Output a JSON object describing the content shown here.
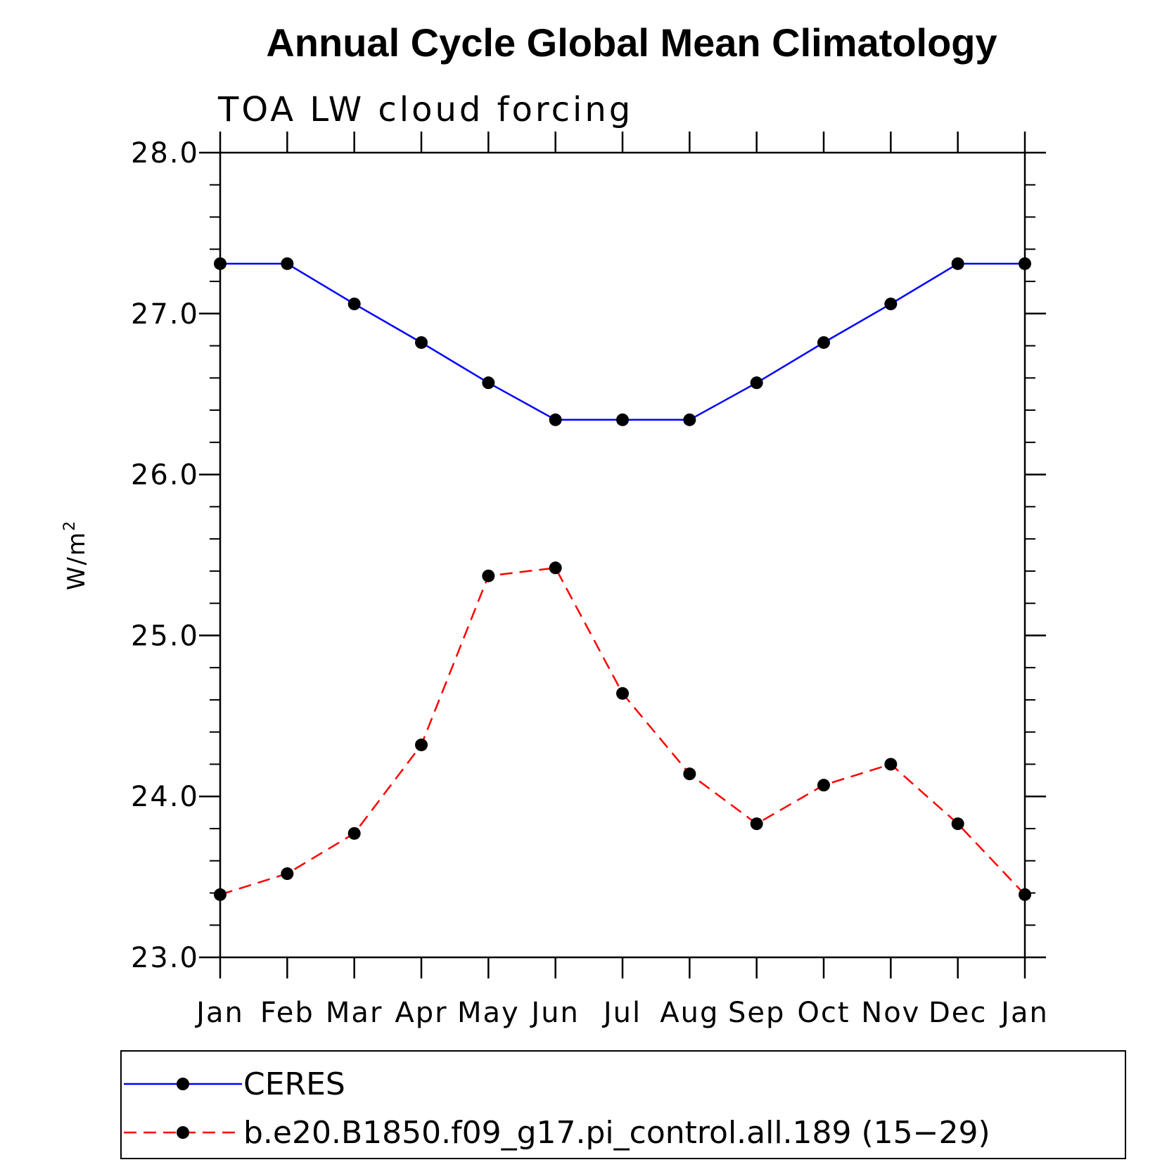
{
  "chart_data": {
    "type": "line",
    "title": "Annual Cycle Global Mean Climatology",
    "subtitle": "TOA LW cloud forcing",
    "ylabel": "W/m",
    "ylabel_superscript": "2",
    "categories": [
      "Jan",
      "Feb",
      "Mar",
      "Apr",
      "May",
      "Jun",
      "Jul",
      "Aug",
      "Sep",
      "Oct",
      "Nov",
      "Dec",
      "Jan"
    ],
    "ylim": [
      23.0,
      28.0
    ],
    "yticks": [
      "23.0",
      "24.0",
      "25.0",
      "26.0",
      "27.0",
      "28.0"
    ],
    "series": [
      {
        "name": "CERES",
        "color": "#0000ff",
        "dash": "solid",
        "marker": "filled-circle",
        "values": [
          27.31,
          27.31,
          27.06,
          26.82,
          26.57,
          26.34,
          26.34,
          26.34,
          26.57,
          26.82,
          27.06,
          27.31,
          27.31
        ]
      },
      {
        "name": "b.e20.B1850.f09_g17.pi_control.all.189 (15−29)",
        "color": "#ff0000",
        "dash": "dashed",
        "marker": "filled-circle",
        "values": [
          23.39,
          23.52,
          23.77,
          24.32,
          25.37,
          25.42,
          24.64,
          24.14,
          23.83,
          24.07,
          24.2,
          23.83,
          23.39
        ]
      }
    ],
    "legend_position": "bottom"
  }
}
